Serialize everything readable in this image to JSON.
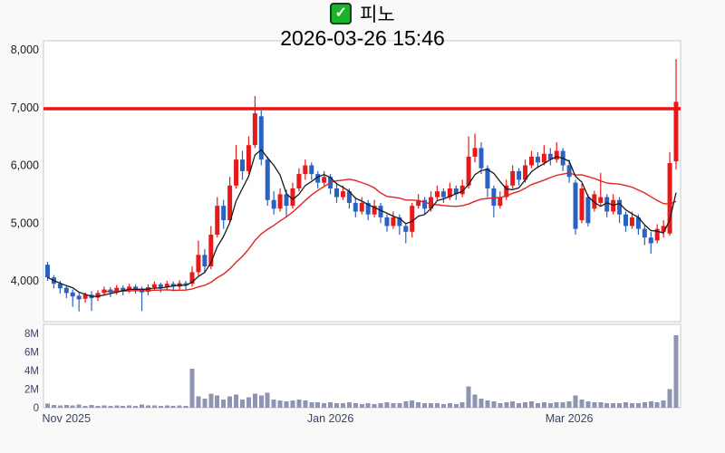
{
  "header": {
    "checkbox_glyph": "✓",
    "title": "피노",
    "timestamp": "2026-03-26 15:46"
  },
  "colors": {
    "background": "#f9f9f9",
    "panel_fill": "#ffffff",
    "panel_border": "#c9c9c9",
    "up_candle": "#e8191a",
    "down_candle": "#2a62c4",
    "ma_short": "#1a1a1a",
    "ma_long": "#e02424",
    "alert_line": "#ee1111",
    "volume_bar": "#8e95b2",
    "price_text": "#1c1c1c",
    "secondary_text": "#3a4468",
    "checkbox_green": "#18b627"
  },
  "chart_data": {
    "type": "candlestick",
    "title": "피노",
    "subtitle": "2026-03-26 15:46",
    "legend_position": "none",
    "grid": false,
    "price_axis": {
      "tick_labels": [
        "8,000",
        "7,000",
        "6,000",
        "5,000",
        "4,000"
      ],
      "tick_values": [
        8000,
        7000,
        6000,
        5000,
        4000
      ],
      "visible_range": [
        3290,
        8160
      ]
    },
    "volume_axis": {
      "tick_labels": [
        "8M",
        "6M",
        "4M",
        "2M",
        "0"
      ],
      "tick_values": [
        8,
        6,
        4,
        2,
        0
      ],
      "unit": "millions_of_shares"
    },
    "x_axis": {
      "tick_labels": [
        "Nov 2025",
        "Jan 2026",
        "Mar 2026"
      ],
      "tick_day_index": [
        3,
        45,
        83
      ]
    },
    "overlays": {
      "horizontal_alert_line_price": 6980,
      "moving_average_periods": [
        5,
        20
      ]
    },
    "columns": [
      "open",
      "high",
      "low",
      "close",
      "volume_millions"
    ],
    "candles": [
      [
        4280,
        4330,
        4000,
        4060,
        0.45
      ],
      [
        4060,
        4100,
        3870,
        3950,
        0.3
      ],
      [
        3950,
        4000,
        3780,
        3870,
        0.25
      ],
      [
        3880,
        3920,
        3700,
        3790,
        0.3
      ],
      [
        3800,
        3850,
        3550,
        3730,
        0.25
      ],
      [
        3740,
        3790,
        3470,
        3680,
        0.35
      ],
      [
        3690,
        3800,
        3620,
        3760,
        0.2
      ],
      [
        3760,
        3820,
        3480,
        3700,
        0.3
      ],
      [
        3710,
        3840,
        3650,
        3790,
        0.2
      ],
      [
        3790,
        3900,
        3740,
        3850,
        0.25
      ],
      [
        3850,
        3890,
        3720,
        3800,
        0.2
      ],
      [
        3810,
        3930,
        3760,
        3880,
        0.25
      ],
      [
        3880,
        3920,
        3750,
        3830,
        0.2
      ],
      [
        3840,
        3950,
        3790,
        3900,
        0.25
      ],
      [
        3900,
        3940,
        3780,
        3860,
        0.2
      ],
      [
        3860,
        3900,
        3480,
        3800,
        0.35
      ],
      [
        3810,
        3940,
        3750,
        3890,
        0.25
      ],
      [
        3890,
        3990,
        3840,
        3940,
        0.25
      ],
      [
        3940,
        3970,
        3800,
        3880,
        0.2
      ],
      [
        3890,
        4000,
        3830,
        3950,
        0.25
      ],
      [
        3950,
        3990,
        3820,
        3900,
        0.2
      ],
      [
        3900,
        4010,
        3850,
        3960,
        0.25
      ],
      [
        3960,
        4000,
        3840,
        3920,
        0.2
      ],
      [
        3950,
        4250,
        3900,
        4150,
        4.2
      ],
      [
        4150,
        4700,
        4080,
        4450,
        1.2
      ],
      [
        4450,
        4550,
        4150,
        4250,
        1.0
      ],
      [
        4250,
        4950,
        4200,
        4800,
        1.5
      ],
      [
        4800,
        5450,
        4750,
        5300,
        1.3
      ],
      [
        5300,
        5400,
        4900,
        5050,
        0.9
      ],
      [
        5050,
        5800,
        5000,
        5650,
        1.2
      ],
      [
        5650,
        6350,
        5600,
        6100,
        1.4
      ],
      [
        6100,
        6250,
        5750,
        5900,
        0.9
      ],
      [
        5900,
        6500,
        5850,
        6350,
        1.1
      ],
      [
        6350,
        7200,
        6300,
        6900,
        1.5
      ],
      [
        6850,
        6950,
        6000,
        6100,
        1.3
      ],
      [
        6100,
        6150,
        5300,
        5400,
        1.6
      ],
      [
        5400,
        5550,
        5150,
        5250,
        0.9
      ],
      [
        5250,
        5600,
        5200,
        5500,
        0.8
      ],
      [
        5500,
        5580,
        5100,
        5300,
        0.7
      ],
      [
        5300,
        5700,
        5250,
        5600,
        0.8
      ],
      [
        5600,
        5950,
        5550,
        5850,
        0.9
      ],
      [
        5850,
        6100,
        5750,
        6000,
        0.8
      ],
      [
        6000,
        6050,
        5750,
        5850,
        0.6
      ],
      [
        5850,
        5900,
        5600,
        5700,
        0.6
      ],
      [
        5700,
        5900,
        5650,
        5800,
        0.5
      ],
      [
        5800,
        5850,
        5500,
        5600,
        0.6
      ],
      [
        5600,
        5700,
        5350,
        5450,
        0.5
      ],
      [
        5450,
        5650,
        5400,
        5550,
        0.5
      ],
      [
        5550,
        5600,
        5250,
        5350,
        0.6
      ],
      [
        5350,
        5450,
        5100,
        5200,
        0.5
      ],
      [
        5200,
        5450,
        5150,
        5350,
        0.4
      ],
      [
        5350,
        5400,
        5050,
        5150,
        0.5
      ],
      [
        5150,
        5400,
        5100,
        5300,
        0.4
      ],
      [
        5300,
        5350,
        5000,
        5100,
        0.5
      ],
      [
        5100,
        5150,
        4850,
        4950,
        0.6
      ],
      [
        4950,
        5200,
        4900,
        5100,
        0.5
      ],
      [
        5100,
        5150,
        4800,
        4950,
        0.5
      ],
      [
        4950,
        5000,
        4650,
        4850,
        0.7
      ],
      [
        4850,
        5350,
        4750,
        5300,
        0.8
      ],
      [
        5300,
        5500,
        5250,
        5400,
        0.6
      ],
      [
        5400,
        5450,
        5150,
        5250,
        0.5
      ],
      [
        5250,
        5550,
        5200,
        5450,
        0.5
      ],
      [
        5450,
        5650,
        5400,
        5550,
        0.5
      ],
      [
        5550,
        5600,
        5350,
        5450,
        0.4
      ],
      [
        5450,
        5700,
        5400,
        5600,
        0.5
      ],
      [
        5600,
        5650,
        5400,
        5500,
        0.4
      ],
      [
        5500,
        5750,
        5450,
        5650,
        0.6
      ],
      [
        5650,
        6500,
        5600,
        6150,
        2.3
      ],
      [
        6150,
        6550,
        6050,
        6300,
        1.4
      ],
      [
        6300,
        6400,
        5850,
        5950,
        1.0
      ],
      [
        5950,
        6000,
        5450,
        5600,
        0.8
      ],
      [
        5600,
        5650,
        5100,
        5300,
        0.7
      ],
      [
        5300,
        5550,
        5250,
        5450,
        0.5
      ],
      [
        5450,
        5750,
        5400,
        5650,
        0.6
      ],
      [
        5650,
        6000,
        5600,
        5900,
        0.7
      ],
      [
        5900,
        5950,
        5650,
        5750,
        0.5
      ],
      [
        5750,
        6100,
        5700,
        6000,
        0.6
      ],
      [
        6000,
        6250,
        5950,
        6150,
        0.7
      ],
      [
        6150,
        6230,
        5950,
        6050,
        0.5
      ],
      [
        6050,
        6350,
        6000,
        6200,
        0.6
      ],
      [
        6200,
        6300,
        6000,
        6100,
        0.5
      ],
      [
        6100,
        6400,
        6050,
        6250,
        0.6
      ],
      [
        6250,
        6300,
        5900,
        6000,
        0.6
      ],
      [
        6000,
        6100,
        5700,
        5800,
        0.7
      ],
      [
        5700,
        5750,
        4800,
        4900,
        1.3
      ],
      [
        5050,
        5680,
        5000,
        5600,
        0.9
      ],
      [
        5450,
        5500,
        4940,
        5000,
        0.7
      ],
      [
        5250,
        5560,
        5200,
        5500,
        0.6
      ],
      [
        5350,
        5870,
        5300,
        5450,
        0.6
      ],
      [
        5450,
        5500,
        5100,
        5200,
        0.5
      ],
      [
        5200,
        5500,
        5150,
        5400,
        0.5
      ],
      [
        5400,
        5450,
        5000,
        5150,
        0.5
      ],
      [
        5150,
        5200,
        4850,
        4950,
        0.6
      ],
      [
        4950,
        5200,
        4900,
        5100,
        0.5
      ],
      [
        5100,
        5150,
        4800,
        4900,
        0.5
      ],
      [
        4900,
        4980,
        4620,
        4750,
        0.6
      ],
      [
        4750,
        4850,
        4470,
        4650,
        0.7
      ],
      [
        4700,
        4980,
        4650,
        4900,
        0.6
      ],
      [
        4850,
        5050,
        4750,
        4950,
        0.8
      ],
      [
        4820,
        6230,
        4780,
        6040,
        2.0
      ],
      [
        6070,
        7840,
        5930,
        7100,
        7.8
      ]
    ]
  }
}
